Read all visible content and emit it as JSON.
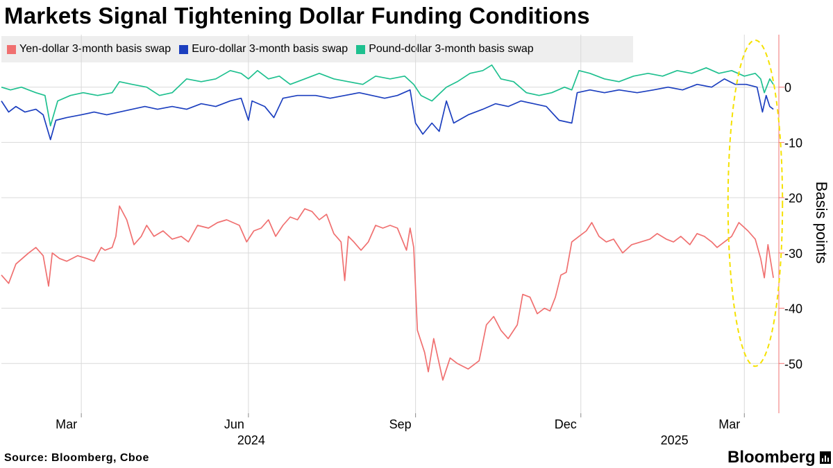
{
  "title": "Markets Signal Tightening Dollar Funding Conditions",
  "source": "Source: Bloomberg, Cboe",
  "brand": "Bloomberg",
  "chart_data": {
    "type": "line",
    "ylabel": "Basis points",
    "ylim": [
      -59,
      9.5
    ],
    "yticks": [
      0,
      -10,
      -20,
      -30,
      -40,
      -50
    ],
    "ytick_labels": [
      "0",
      "-10",
      "-20",
      "-30",
      "-40",
      "-50"
    ],
    "x_start": "2024-01-17",
    "x_end": "2025-03-20",
    "x_months": [
      {
        "label": "Mar",
        "date": "2024-03-01"
      },
      {
        "label": "Jun",
        "date": "2024-06-01"
      },
      {
        "label": "Sep",
        "date": "2024-09-01"
      },
      {
        "label": "Dec",
        "date": "2024-12-01"
      },
      {
        "label": "Mar",
        "date": "2025-03-01"
      }
    ],
    "x_years": [
      {
        "label": "2024",
        "date": "2024-06-01"
      },
      {
        "label": "2025",
        "date": "2025-01-20"
      }
    ],
    "annotation": {
      "type": "ellipse",
      "x_from": "2025-02-20",
      "x_to": "2025-03-22",
      "y_from": 8.5,
      "y_to": -50.5,
      "color": "#f5e100"
    },
    "series": [
      {
        "name": "Yen-dollar 3-month basis swap",
        "color": "#f07070",
        "points": [
          [
            "2024-01-17",
            -34
          ],
          [
            "2024-01-21",
            -35.5
          ],
          [
            "2024-01-25",
            -32
          ],
          [
            "2024-02-01",
            -30
          ],
          [
            "2024-02-05",
            -29
          ],
          [
            "2024-02-09",
            -30.5
          ],
          [
            "2024-02-12",
            -36
          ],
          [
            "2024-02-14",
            -30
          ],
          [
            "2024-02-18",
            -31
          ],
          [
            "2024-02-22",
            -31.5
          ],
          [
            "2024-02-28",
            -30.5
          ],
          [
            "2024-03-04",
            -31
          ],
          [
            "2024-03-08",
            -31.5
          ],
          [
            "2024-03-12",
            -29
          ],
          [
            "2024-03-14",
            -29.5
          ],
          [
            "2024-03-18",
            -29
          ],
          [
            "2024-03-20",
            -27
          ],
          [
            "2024-03-22",
            -21.5
          ],
          [
            "2024-03-26",
            -24
          ],
          [
            "2024-03-30",
            -28.5
          ],
          [
            "2024-04-03",
            -27
          ],
          [
            "2024-04-06",
            -25
          ],
          [
            "2024-04-10",
            -27
          ],
          [
            "2024-04-15",
            -26
          ],
          [
            "2024-04-20",
            -27.5
          ],
          [
            "2024-04-25",
            -27
          ],
          [
            "2024-04-29",
            -28
          ],
          [
            "2024-05-04",
            -25
          ],
          [
            "2024-05-10",
            -25.5
          ],
          [
            "2024-05-15",
            -24.5
          ],
          [
            "2024-05-20",
            -24
          ],
          [
            "2024-05-27",
            -25
          ],
          [
            "2024-05-31",
            -28
          ],
          [
            "2024-06-04",
            -26
          ],
          [
            "2024-06-08",
            -25.5
          ],
          [
            "2024-06-12",
            -24
          ],
          [
            "2024-06-16",
            -27
          ],
          [
            "2024-06-20",
            -25
          ],
          [
            "2024-06-24",
            -23.5
          ],
          [
            "2024-06-28",
            -24
          ],
          [
            "2024-07-02",
            -22
          ],
          [
            "2024-07-06",
            -22.5
          ],
          [
            "2024-07-10",
            -24
          ],
          [
            "2024-07-14",
            -23
          ],
          [
            "2024-07-18",
            -26.5
          ],
          [
            "2024-07-22",
            -28
          ],
          [
            "2024-07-24",
            -35
          ],
          [
            "2024-07-26",
            -27
          ],
          [
            "2024-07-29",
            -28
          ],
          [
            "2024-08-02",
            -29.5
          ],
          [
            "2024-08-06",
            -28
          ],
          [
            "2024-08-10",
            -25
          ],
          [
            "2024-08-14",
            -25.5
          ],
          [
            "2024-08-18",
            -25
          ],
          [
            "2024-08-22",
            -25.5
          ],
          [
            "2024-08-27",
            -29.5
          ],
          [
            "2024-08-29",
            -25.5
          ],
          [
            "2024-08-31",
            -29
          ],
          [
            "2024-09-02",
            -44
          ],
          [
            "2024-09-06",
            -48
          ],
          [
            "2024-09-08",
            -51.5
          ],
          [
            "2024-09-11",
            -45.5
          ],
          [
            "2024-09-16",
            -53
          ],
          [
            "2024-09-20",
            -49
          ],
          [
            "2024-09-24",
            -50
          ],
          [
            "2024-09-30",
            -51
          ],
          [
            "2024-10-06",
            -49.5
          ],
          [
            "2024-10-10",
            -43
          ],
          [
            "2024-10-14",
            -41.5
          ],
          [
            "2024-10-18",
            -44
          ],
          [
            "2024-10-22",
            -45.5
          ],
          [
            "2024-10-27",
            -43
          ],
          [
            "2024-10-30",
            -37.5
          ],
          [
            "2024-11-03",
            -38
          ],
          [
            "2024-11-07",
            -41
          ],
          [
            "2024-11-11",
            -40
          ],
          [
            "2024-11-14",
            -40.5
          ],
          [
            "2024-11-17",
            -38
          ],
          [
            "2024-11-20",
            -34
          ],
          [
            "2024-11-23",
            -33.5
          ],
          [
            "2024-11-26",
            -28
          ],
          [
            "2024-11-30",
            -27
          ],
          [
            "2024-12-04",
            -26
          ],
          [
            "2024-12-07",
            -24.5
          ],
          [
            "2024-12-11",
            -27
          ],
          [
            "2024-12-15",
            -28
          ],
          [
            "2024-12-19",
            -27.5
          ],
          [
            "2024-12-24",
            -30
          ],
          [
            "2024-12-29",
            -28.5
          ],
          [
            "2025-01-03",
            -28
          ],
          [
            "2025-01-08",
            -27.5
          ],
          [
            "2025-01-12",
            -26.5
          ],
          [
            "2025-01-17",
            -27.5
          ],
          [
            "2025-01-21",
            -28
          ],
          [
            "2025-01-25",
            -27
          ],
          [
            "2025-01-30",
            -28.5
          ],
          [
            "2025-02-03",
            -26.5
          ],
          [
            "2025-02-07",
            -27
          ],
          [
            "2025-02-11",
            -28
          ],
          [
            "2025-02-14",
            -29
          ],
          [
            "2025-02-18",
            -28
          ],
          [
            "2025-02-22",
            -27
          ],
          [
            "2025-02-26",
            -24.5
          ],
          [
            "2025-03-03",
            -26
          ],
          [
            "2025-03-07",
            -27.5
          ],
          [
            "2025-03-10",
            -31
          ],
          [
            "2025-03-12",
            -34.5
          ],
          [
            "2025-03-14",
            -28.5
          ],
          [
            "2025-03-17",
            -34.5
          ]
        ]
      },
      {
        "name": "Euro-dollar 3-month basis swap",
        "color": "#1c3fbf",
        "points": [
          [
            "2024-01-17",
            -2.5
          ],
          [
            "2024-01-21",
            -4.5
          ],
          [
            "2024-01-25",
            -3.5
          ],
          [
            "2024-01-30",
            -4.5
          ],
          [
            "2024-02-05",
            -4
          ],
          [
            "2024-02-09",
            -5
          ],
          [
            "2024-02-13",
            -9.5
          ],
          [
            "2024-02-16",
            -6
          ],
          [
            "2024-02-22",
            -5.5
          ],
          [
            "2024-03-01",
            -5
          ],
          [
            "2024-03-08",
            -4.5
          ],
          [
            "2024-03-15",
            -5
          ],
          [
            "2024-03-22",
            -4.5
          ],
          [
            "2024-03-29",
            -4
          ],
          [
            "2024-04-05",
            -3.5
          ],
          [
            "2024-04-12",
            -4
          ],
          [
            "2024-04-20",
            -3.5
          ],
          [
            "2024-04-28",
            -4
          ],
          [
            "2024-05-06",
            -3
          ],
          [
            "2024-05-14",
            -3.5
          ],
          [
            "2024-05-22",
            -2.5
          ],
          [
            "2024-05-28",
            -2
          ],
          [
            "2024-06-01",
            -6
          ],
          [
            "2024-06-03",
            -2.5
          ],
          [
            "2024-06-10",
            -3.5
          ],
          [
            "2024-06-15",
            -5.5
          ],
          [
            "2024-06-20",
            -2
          ],
          [
            "2024-06-28",
            -1.5
          ],
          [
            "2024-07-08",
            -1.5
          ],
          [
            "2024-07-16",
            -2
          ],
          [
            "2024-07-24",
            -1.5
          ],
          [
            "2024-08-01",
            -1
          ],
          [
            "2024-08-08",
            -1.5
          ],
          [
            "2024-08-15",
            -2
          ],
          [
            "2024-08-22",
            -1.5
          ],
          [
            "2024-08-29",
            -0.5
          ],
          [
            "2024-09-01",
            -6.5
          ],
          [
            "2024-09-05",
            -8.5
          ],
          [
            "2024-09-10",
            -6.5
          ],
          [
            "2024-09-14",
            -8
          ],
          [
            "2024-09-18",
            -2.5
          ],
          [
            "2024-09-22",
            -6.5
          ],
          [
            "2024-09-30",
            -5
          ],
          [
            "2024-10-08",
            -4
          ],
          [
            "2024-10-15",
            -3
          ],
          [
            "2024-10-22",
            -3.5
          ],
          [
            "2024-10-29",
            -2.5
          ],
          [
            "2024-11-05",
            -3
          ],
          [
            "2024-11-12",
            -3.5
          ],
          [
            "2024-11-19",
            -6
          ],
          [
            "2024-11-26",
            -6.5
          ],
          [
            "2024-11-29",
            -1
          ],
          [
            "2024-12-06",
            -0.5
          ],
          [
            "2024-12-14",
            -1
          ],
          [
            "2024-12-22",
            -0.5
          ],
          [
            "2025-01-01",
            -1
          ],
          [
            "2025-01-10",
            -0.5
          ],
          [
            "2025-01-18",
            0
          ],
          [
            "2025-01-26",
            -0.5
          ],
          [
            "2025-02-03",
            0.5
          ],
          [
            "2025-02-11",
            0
          ],
          [
            "2025-02-18",
            1.5
          ],
          [
            "2025-02-24",
            0.5
          ],
          [
            "2025-03-02",
            0.5
          ],
          [
            "2025-03-08",
            0
          ],
          [
            "2025-03-11",
            -4.5
          ],
          [
            "2025-03-13",
            -1.5
          ],
          [
            "2025-03-15",
            -3.5
          ],
          [
            "2025-03-17",
            -4
          ]
        ]
      },
      {
        "name": "Pound-dollar 3-month basis swap",
        "color": "#1ec08f",
        "points": [
          [
            "2024-01-17",
            0
          ],
          [
            "2024-01-22",
            -0.5
          ],
          [
            "2024-01-28",
            0
          ],
          [
            "2024-02-05",
            -1
          ],
          [
            "2024-02-10",
            -1.5
          ],
          [
            "2024-02-13",
            -7
          ],
          [
            "2024-02-17",
            -2.5
          ],
          [
            "2024-02-24",
            -1.5
          ],
          [
            "2024-03-02",
            -1
          ],
          [
            "2024-03-10",
            -1.5
          ],
          [
            "2024-03-18",
            -1
          ],
          [
            "2024-03-22",
            1
          ],
          [
            "2024-03-29",
            0.5
          ],
          [
            "2024-04-06",
            0
          ],
          [
            "2024-04-13",
            -1.5
          ],
          [
            "2024-04-20",
            -1
          ],
          [
            "2024-04-28",
            1.5
          ],
          [
            "2024-05-06",
            1
          ],
          [
            "2024-05-14",
            1.5
          ],
          [
            "2024-05-22",
            3
          ],
          [
            "2024-05-28",
            2.5
          ],
          [
            "2024-06-01",
            1.5
          ],
          [
            "2024-06-06",
            3
          ],
          [
            "2024-06-12",
            1.5
          ],
          [
            "2024-06-18",
            2
          ],
          [
            "2024-06-24",
            0.5
          ],
          [
            "2024-07-02",
            1.5
          ],
          [
            "2024-07-10",
            2.5
          ],
          [
            "2024-07-18",
            1.5
          ],
          [
            "2024-07-26",
            1
          ],
          [
            "2024-08-03",
            0.5
          ],
          [
            "2024-08-10",
            2
          ],
          [
            "2024-08-18",
            1.5
          ],
          [
            "2024-08-26",
            2
          ],
          [
            "2024-08-31",
            0.5
          ],
          [
            "2024-09-04",
            -1.5
          ],
          [
            "2024-09-10",
            -2.5
          ],
          [
            "2024-09-18",
            0
          ],
          [
            "2024-09-24",
            1
          ],
          [
            "2024-10-01",
            2.5
          ],
          [
            "2024-10-08",
            3
          ],
          [
            "2024-10-13",
            4
          ],
          [
            "2024-10-18",
            1.5
          ],
          [
            "2024-10-25",
            1
          ],
          [
            "2024-11-01",
            -1
          ],
          [
            "2024-11-08",
            -1.5
          ],
          [
            "2024-11-15",
            -1
          ],
          [
            "2024-11-22",
            0
          ],
          [
            "2024-11-26",
            -0.5
          ],
          [
            "2024-11-30",
            3
          ],
          [
            "2024-12-06",
            2.5
          ],
          [
            "2024-12-14",
            1.5
          ],
          [
            "2024-12-22",
            1
          ],
          [
            "2024-12-30",
            2
          ],
          [
            "2025-01-07",
            2.5
          ],
          [
            "2025-01-15",
            2
          ],
          [
            "2025-01-23",
            3
          ],
          [
            "2025-01-31",
            2.5
          ],
          [
            "2025-02-08",
            3.5
          ],
          [
            "2025-02-15",
            2.5
          ],
          [
            "2025-02-22",
            3
          ],
          [
            "2025-03-01",
            2
          ],
          [
            "2025-03-07",
            2.5
          ],
          [
            "2025-03-10",
            1.5
          ],
          [
            "2025-03-12",
            -1
          ],
          [
            "2025-03-15",
            1.5
          ],
          [
            "2025-03-17",
            0.5
          ]
        ]
      }
    ]
  }
}
